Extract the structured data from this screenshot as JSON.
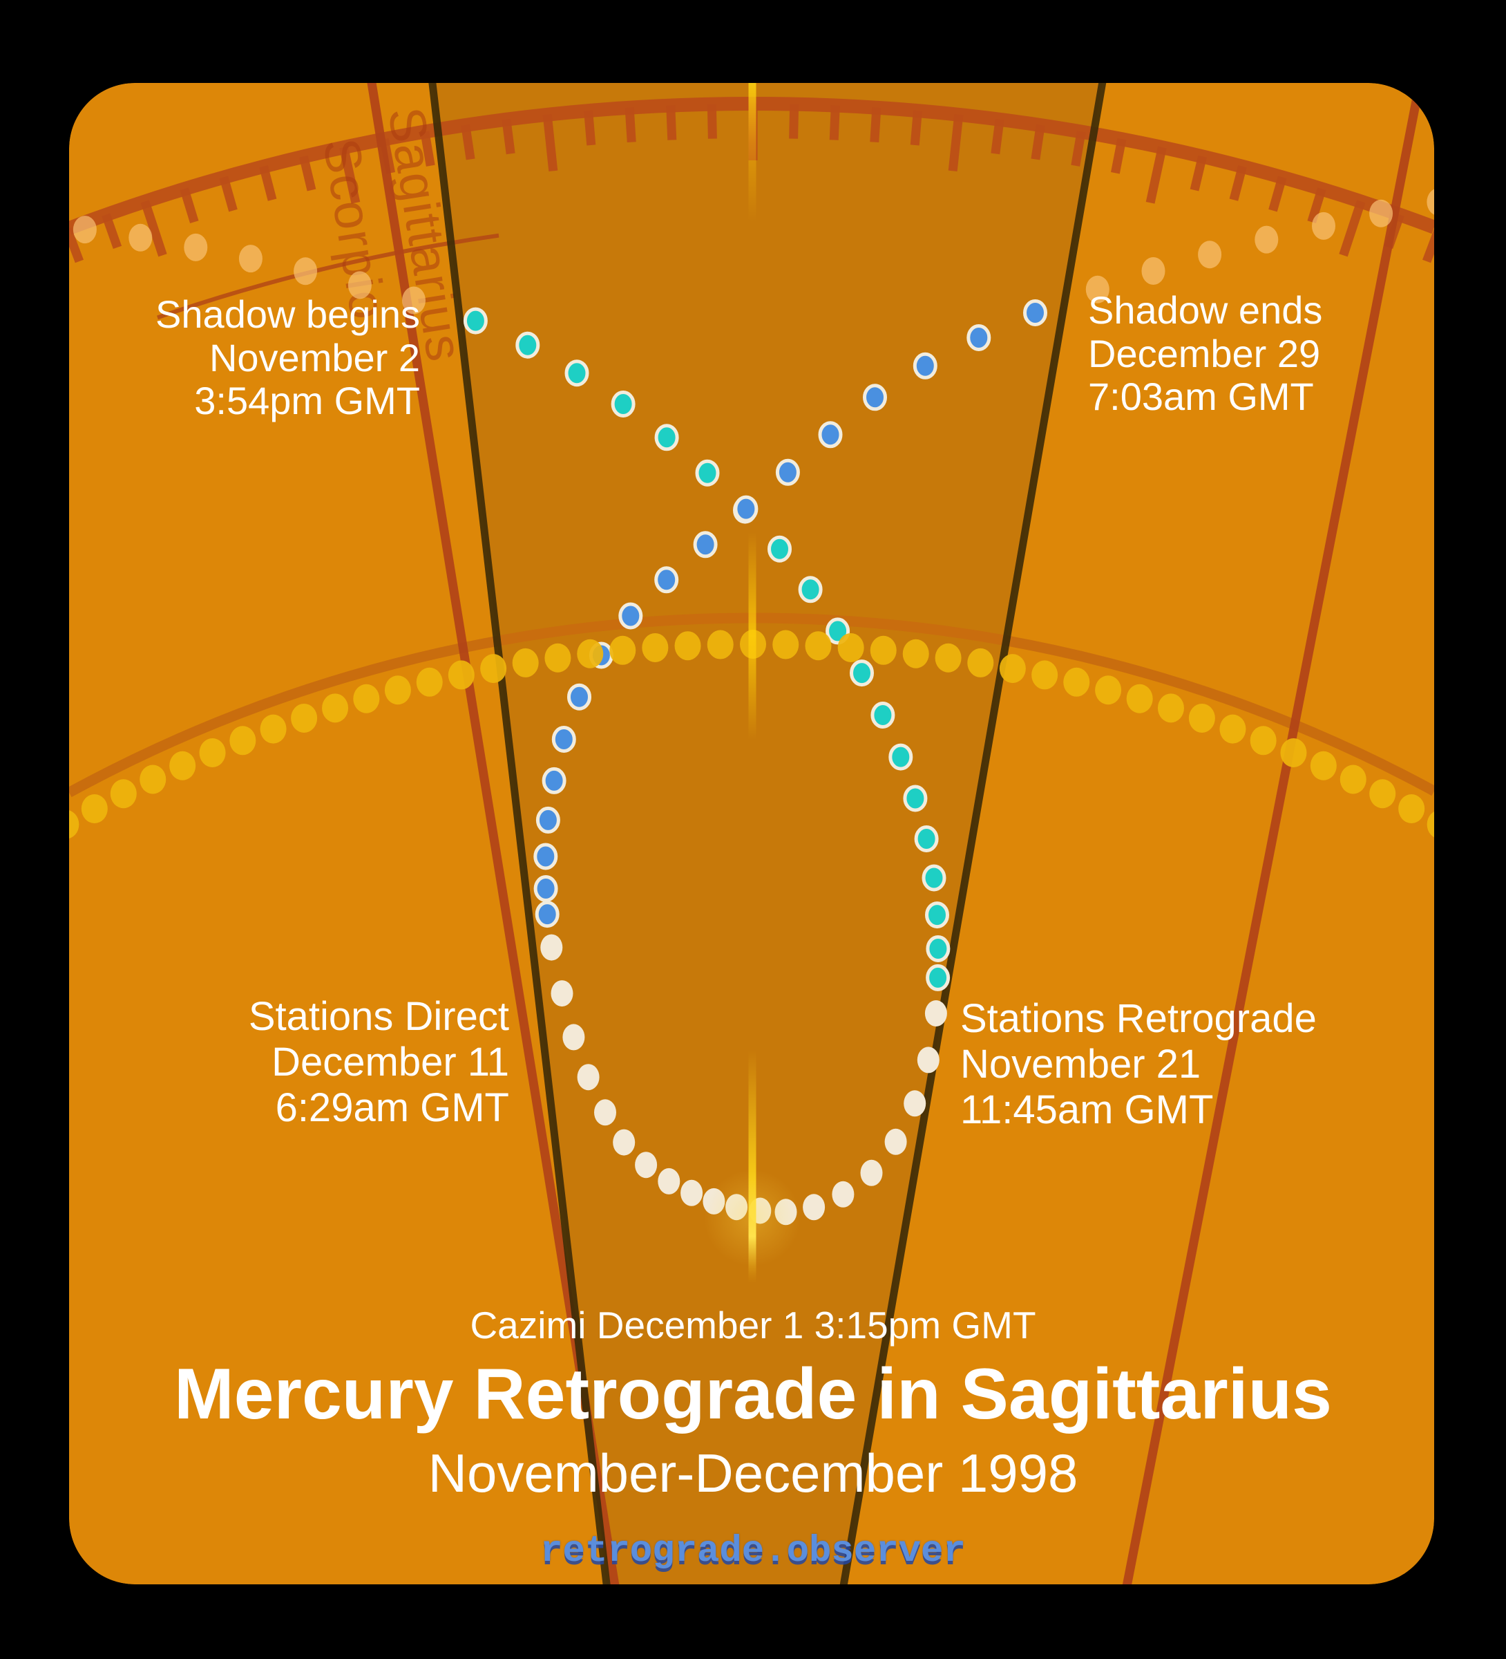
{
  "title_block": {
    "cazimi_line": "Cazimi December 1 3:15pm GMT",
    "title": "Mercury Retrograde in Sagittarius",
    "subtitle": "November-December 1998",
    "watermark": "retrograde.observer",
    "watermark_color": "#5b8edc"
  },
  "annotations": {
    "shadow_begins": {
      "lines": [
        "Shadow begins",
        "November 2",
        "3:54pm GMT"
      ]
    },
    "shadow_ends": {
      "lines": [
        "Shadow ends",
        "December 29",
        "7:03am GMT"
      ]
    },
    "stations_direct": {
      "lines": [
        "Stations Direct",
        "December 11",
        "6:29am GMT"
      ]
    },
    "stations_retrograde": {
      "lines": [
        "Stations Retrograde",
        "November 21",
        "11:45am GMT"
      ]
    }
  },
  "zodiac": {
    "sign_right": "Sagittarius",
    "sign_left": "Scorpio",
    "ring_color": "rgba(188,78,24,0.92)",
    "label_color": "rgba(171,60,16,0.55)",
    "sign_boundary_color": "rgba(178,69,23,0.95)",
    "shadow_boundary_color": "rgba(63,45,8,0.92)"
  },
  "card": {
    "background": "#dd8708",
    "shadow_zone_fill": "#c7790a",
    "outside_color": "#000000"
  },
  "sun_path": {
    "dot_color": "#efb50d",
    "arc_line_color": "#c96d0e",
    "dot_count": 47
  },
  "cazimi_marker": {
    "color": "#ffd913",
    "glow_color": "rgba(255,220,70,0.30)"
  },
  "mercury_path": {
    "segments": [
      {
        "id": "pre-shadow",
        "phase": "faded approach",
        "dots": 8,
        "color": "rgba(250,196,120,0.68)",
        "stroke": "none"
      },
      {
        "id": "direct-into-shadow",
        "phase": "direct Nov 2 - Nov 21",
        "dots": 19,
        "color": "#1ecfc4",
        "stroke": "#f2ecdd"
      },
      {
        "id": "retrograde",
        "phase": "retrograde Nov 21 - Dec 11",
        "dots": 20,
        "color": "#f3e9d7",
        "stroke": "none"
      },
      {
        "id": "direct-out-shadow",
        "phase": "direct Dec 11 - Dec 29",
        "dots": 18,
        "color": "#4a90e0",
        "stroke": "#f2ecdd"
      },
      {
        "id": "post-shadow",
        "phase": "faded departure",
        "dots": 7,
        "color": "rgba(250,196,120,0.68)",
        "stroke": "none"
      }
    ]
  }
}
